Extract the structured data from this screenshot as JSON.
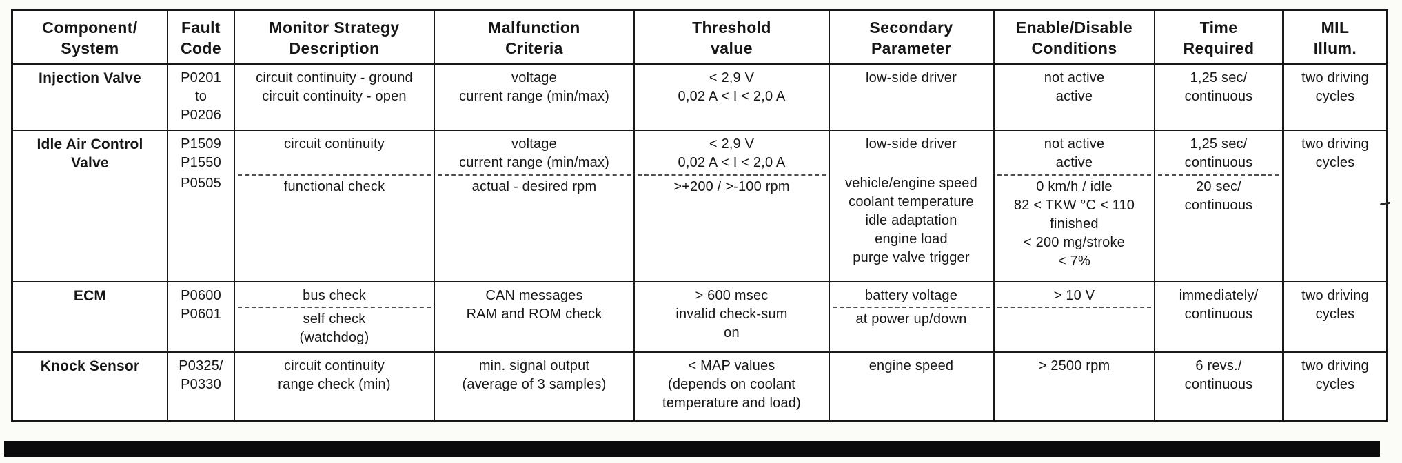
{
  "table": {
    "headers": [
      {
        "lines": [
          "Component/",
          "System"
        ]
      },
      {
        "lines": [
          "Fault",
          "Code"
        ]
      },
      {
        "lines": [
          "Monitor Strategy",
          "Description"
        ]
      },
      {
        "lines": [
          "Malfunction",
          "Criteria"
        ]
      },
      {
        "lines": [
          "Threshold",
          "value"
        ]
      },
      {
        "lines": [
          "Secondary",
          "Parameter"
        ]
      },
      {
        "lines": [
          "Enable/Disable",
          "Conditions"
        ]
      },
      {
        "lines": [
          "Time",
          "Required"
        ]
      },
      {
        "lines": [
          "MIL",
          "Illum."
        ]
      }
    ],
    "rows": [
      {
        "cells": [
          {
            "segments": [
              {
                "lines": [
                  "Injection Valve"
                ]
              }
            ]
          },
          {
            "segments": [
              {
                "lines": [
                  "P0201",
                  "to",
                  "P0206"
                ]
              }
            ]
          },
          {
            "segments": [
              {
                "lines": [
                  "circuit continuity - ground",
                  "circuit continuity - open"
                ]
              }
            ]
          },
          {
            "segments": [
              {
                "lines": [
                  "voltage",
                  "current range (min/max)"
                ]
              }
            ]
          },
          {
            "segments": [
              {
                "lines": [
                  "< 2,9 V",
                  "0,02 A < I < 2,0 A"
                ]
              }
            ]
          },
          {
            "segments": [
              {
                "lines": [
                  "low-side driver"
                ]
              }
            ]
          },
          {
            "segments": [
              {
                "lines": [
                  "not active",
                  "active"
                ]
              }
            ]
          },
          {
            "segments": [
              {
                "lines": [
                  "1,25 sec/",
                  "continuous"
                ]
              }
            ]
          },
          {
            "segments": [
              {
                "lines": [
                  "two driving",
                  "cycles"
                ]
              }
            ]
          }
        ]
      },
      {
        "cells": [
          {
            "segments": [
              {
                "lines": [
                  "Idle Air Control",
                  "Valve"
                ]
              }
            ]
          },
          {
            "segments": [
              {
                "lines": [
                  "P1509",
                  "P1550"
                ]
              },
              {
                "lines": [
                  "P0505"
                ]
              }
            ]
          },
          {
            "segments": [
              {
                "lines": [
                  "circuit continuity"
                ]
              },
              {
                "lines": [
                  "functional check"
                ]
              }
            ]
          },
          {
            "segments": [
              {
                "lines": [
                  "voltage",
                  "current range (min/max)"
                ]
              },
              {
                "lines": [
                  "actual - desired rpm"
                ]
              }
            ]
          },
          {
            "segments": [
              {
                "lines": [
                  "< 2,9 V",
                  "0,02 A < I < 2,0 A"
                ]
              },
              {
                "lines": [
                  ">+200 / >-100 rpm"
                ]
              }
            ]
          },
          {
            "segments": [
              {
                "lines": [
                  "low-side driver"
                ]
              },
              {
                "lines": [
                  "vehicle/engine speed",
                  "coolant temperature",
                  "idle adaptation",
                  "engine load",
                  "purge valve trigger"
                ]
              }
            ]
          },
          {
            "segments": [
              {
                "lines": [
                  "not active",
                  "active"
                ]
              },
              {
                "lines": [
                  "0 km/h / idle",
                  "82 < TKW °C < 110",
                  "finished",
                  "< 200 mg/stroke",
                  "< 7%"
                ]
              }
            ]
          },
          {
            "segments": [
              {
                "lines": [
                  "1,25 sec/",
                  "continuous"
                ]
              },
              {
                "lines": [
                  "20 sec/",
                  "continuous"
                ]
              }
            ]
          },
          {
            "segments": [
              {
                "lines": [
                  "two driving",
                  "cycles"
                ]
              }
            ]
          }
        ]
      },
      {
        "cells": [
          {
            "segments": [
              {
                "lines": [
                  "ECM"
                ]
              }
            ]
          },
          {
            "segments": [
              {
                "lines": [
                  "P0600",
                  "P0601"
                ]
              }
            ]
          },
          {
            "segments": [
              {
                "lines": [
                  "bus check"
                ]
              },
              {
                "lines": [
                  "self check",
                  "(watchdog)"
                ]
              }
            ]
          },
          {
            "segments": [
              {
                "lines": [
                  "CAN messages",
                  "RAM and ROM check"
                ]
              }
            ]
          },
          {
            "segments": [
              {
                "lines": [
                  "> 600 msec",
                  "invalid check-sum",
                  "on"
                ]
              }
            ]
          },
          {
            "segments": [
              {
                "lines": [
                  "battery voltage"
                ]
              },
              {
                "lines": [
                  "at power up/down"
                ]
              }
            ]
          },
          {
            "segments": [
              {
                "lines": [
                  "> 10 V"
                ]
              },
              {
                "lines": []
              }
            ]
          },
          {
            "segments": [
              {
                "lines": [
                  "immediately/",
                  "continuous"
                ]
              }
            ]
          },
          {
            "segments": [
              {
                "lines": [
                  "two driving",
                  "cycles"
                ]
              }
            ]
          }
        ]
      },
      {
        "cells": [
          {
            "segments": [
              {
                "lines": [
                  "Knock Sensor"
                ]
              }
            ]
          },
          {
            "segments": [
              {
                "lines": [
                  "P0325/",
                  "P0330"
                ]
              }
            ]
          },
          {
            "segments": [
              {
                "lines": [
                  "circuit continuity",
                  "range check (min)"
                ]
              }
            ]
          },
          {
            "segments": [
              {
                "lines": [
                  "min. signal output",
                  "(average of 3 samples)"
                ]
              }
            ]
          },
          {
            "segments": [
              {
                "lines": [
                  "< MAP values",
                  "(depends on coolant",
                  "temperature and load)"
                ]
              }
            ]
          },
          {
            "segments": [
              {
                "lines": [
                  "engine speed"
                ]
              }
            ]
          },
          {
            "segments": [
              {
                "lines": [
                  "> 2500 rpm"
                ]
              }
            ]
          },
          {
            "segments": [
              {
                "lines": [
                  "6 revs./",
                  "continuous"
                ]
              }
            ]
          },
          {
            "segments": [
              {
                "lines": [
                  "two driving",
                  "cycles"
                ]
              }
            ]
          }
        ]
      }
    ]
  },
  "colors": {
    "border": "#1a1a1a",
    "text": "#161616",
    "bottom_bar": "#0b0b0b",
    "page_background": "#fbfbf8"
  }
}
